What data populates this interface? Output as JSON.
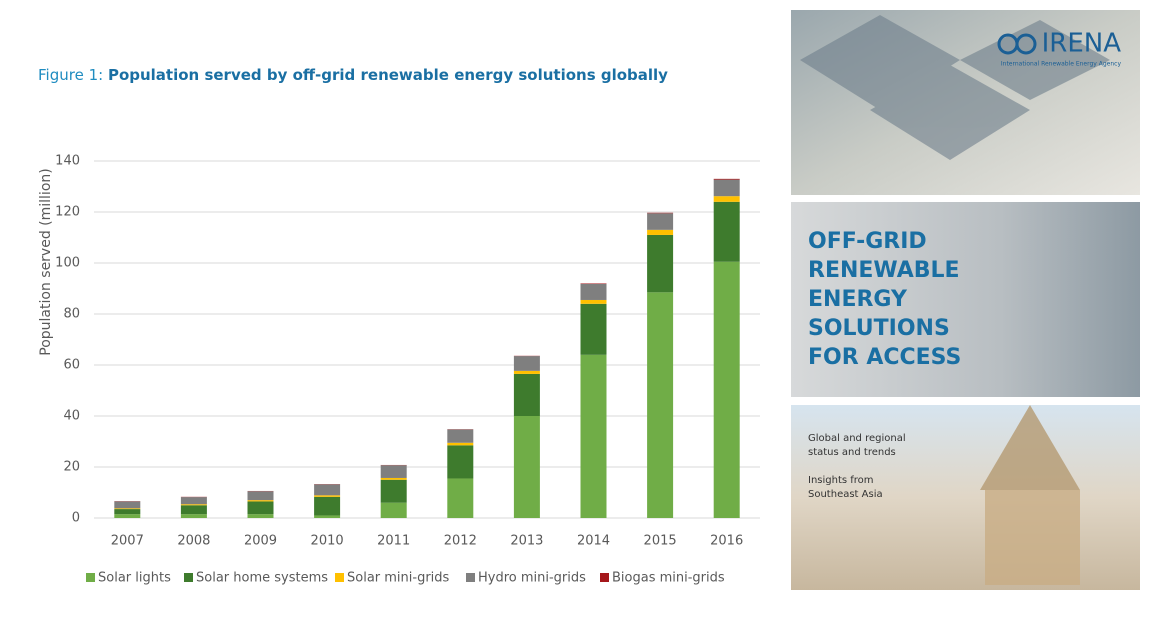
{
  "chart_data": {
    "type": "stacked-bar",
    "figure_label": "Figure 1:",
    "title": "Population served by off-grid renewable energy solutions globally",
    "y_label": "Population served (million)",
    "categories": [
      "2007",
      "2008",
      "2009",
      "2010",
      "2011",
      "2012",
      "2013",
      "2014",
      "2015",
      "2016"
    ],
    "series": [
      {
        "name": "Solar lights",
        "color": "#70ad47",
        "values": [
          1.5,
          1.5,
          1.5,
          1,
          6,
          15.5,
          40,
          64,
          88.5,
          100.5
        ]
      },
      {
        "name": "Solar home systems",
        "color": "#3e7b2d",
        "values": [
          2,
          3.5,
          5,
          7.3,
          9,
          13,
          16.5,
          20,
          22.5,
          23.5
        ]
      },
      {
        "name": "Solar mini-grids",
        "color": "#ffc000",
        "values": [
          0.3,
          0.4,
          0.5,
          0.6,
          0.7,
          1,
          1.2,
          1.5,
          2,
          2.2
        ]
      },
      {
        "name": "Hydro mini-grids",
        "color": "#7f7f7f",
        "values": [
          2.7,
          2.8,
          3.5,
          4.3,
          5,
          5.2,
          5.8,
          6.3,
          6.5,
          6.5
        ]
      },
      {
        "name": "Biogas mini-grids",
        "color": "#a5171b",
        "values": [
          0.1,
          0.1,
          0.1,
          0.1,
          0.1,
          0.1,
          0.1,
          0.2,
          0.2,
          0.3
        ]
      }
    ],
    "ylim": [
      0,
      140
    ],
    "yticks": [
      0,
      20,
      40,
      60,
      80,
      100,
      120,
      140
    ],
    "grid": true,
    "legend": "bottom"
  },
  "cover": {
    "logo": "IRENA",
    "agency": "International Renewable Energy Agency",
    "headline": [
      "OFF-GRID",
      "RENEWABLE",
      "ENERGY",
      "SOLUTIONS",
      "FOR ACCESS"
    ],
    "subtitle": [
      "Global and regional",
      "status and trends"
    ],
    "insights": [
      "Insights from",
      "Southeast Asia"
    ]
  }
}
